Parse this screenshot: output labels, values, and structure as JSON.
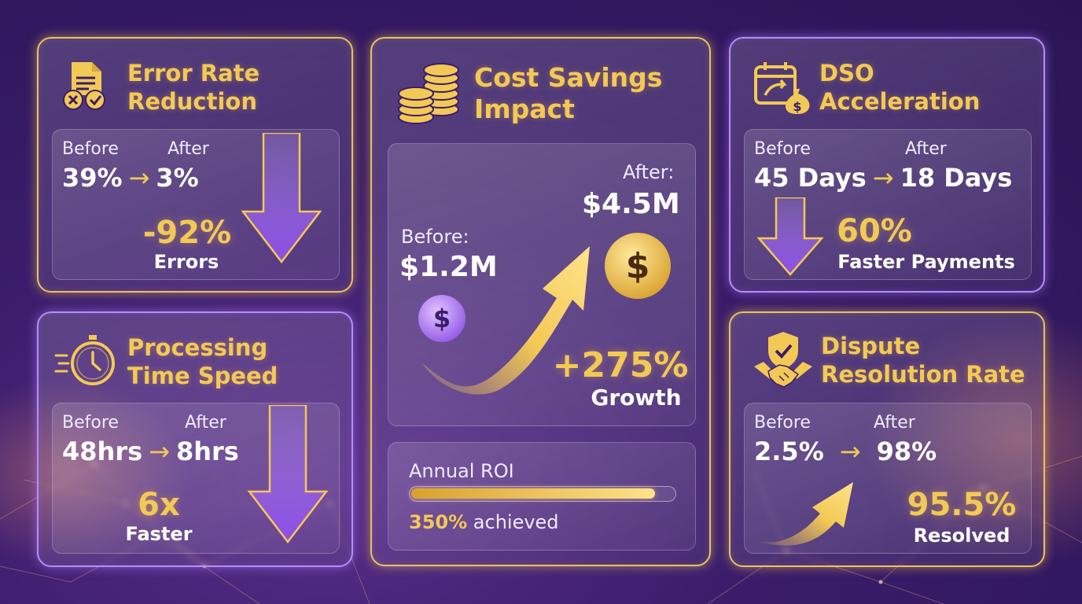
{
  "error_rate": {
    "title_line1": "Error Rate",
    "title_line2": "Reduction",
    "before_label": "Before",
    "after_label": "After",
    "before_value": "39%",
    "after_value": "3%",
    "change": "-92%",
    "change_label": "Errors"
  },
  "processing": {
    "title_line1": "Processing",
    "title_line2": "Time Speed",
    "before_label": "Before",
    "after_label": "After",
    "before_value": "48hrs",
    "after_value": "8hrs",
    "change": "6x",
    "change_label": "Faster"
  },
  "cost": {
    "title_line1": "Cost Savings",
    "title_line2": "Impact",
    "before_label": "Before:",
    "before_value": "$1.2M",
    "after_label": "After:",
    "after_value": "$4.5M",
    "growth": "+275%",
    "growth_label": "Growth",
    "roi_label": "Annual ROI",
    "roi_value": "350%",
    "roi_suffix": " achieved",
    "roi_fill_fraction": 0.93
  },
  "dso": {
    "title_line1": "DSO",
    "title_line2": "Acceleration",
    "before_label": "Before",
    "after_label": "After",
    "before_value": "45 Days",
    "after_value": "18 Days",
    "change": "60%",
    "change_label": "Faster Payments"
  },
  "dispute": {
    "title_line1": "Dispute",
    "title_line2": "Resolution Rate",
    "before_label": "Before",
    "after_label": "After",
    "before_value": "2.5%",
    "after_value": "98%",
    "change": "95.5%",
    "change_label": "Resolved"
  },
  "arrow_glyph": "→",
  "dollar_glyph": "$",
  "icons": [
    "document-check-icon",
    "stopwatch-icon",
    "coin-stack-icon",
    "calendar-money-icon",
    "handshake-shield-icon",
    "down-arrow-icon",
    "up-arrow-icon",
    "dollar-coin-icon"
  ],
  "colors": {
    "gold": "#f3c955",
    "purple": "#9b5cf0",
    "background": "#3b1d6b"
  }
}
